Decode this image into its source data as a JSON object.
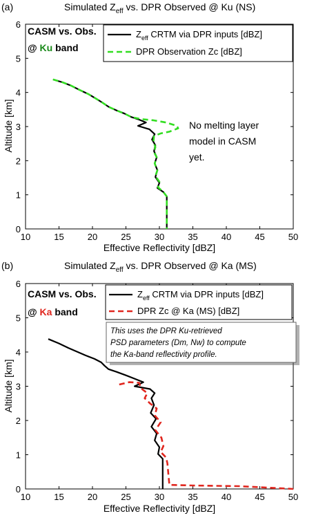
{
  "figure": {
    "panels": [
      {
        "label": "(a)",
        "title_pre": "Simulated Z",
        "title_sub": "eff",
        "title_post": " vs. DPR Observed @ Ku (NS)",
        "box_title": "CASM vs. Obs.",
        "box_band_pre": "@ ",
        "box_band": "Ku",
        "box_band_post": " band",
        "band_color": "#1a8a1a",
        "legend": [
          {
            "pre": "Z",
            "sub": "eff",
            "post": " CRTM via DPR inputs [dBZ]"
          },
          {
            "pre": "DPR Observation Zc [dBZ]",
            "sub": "",
            "post": ""
          }
        ],
        "annotation": [
          "No melting layer",
          "model in  CASM",
          "yet."
        ],
        "callout": [],
        "xlabel": "Effective Reflectivity [dBZ]",
        "ylabel": "Altitude [km]"
      },
      {
        "label": "(b)",
        "title_pre": "Simulated Z",
        "title_sub": "eff",
        "title_post": " vs. DPR Observed @ Ka (MS)",
        "box_title": "CASM vs. Obs.",
        "box_band_pre": "@ ",
        "box_band": "Ka",
        "box_band_post": " band",
        "band_color": "#e0261e",
        "legend": [
          {
            "pre": "Z",
            "sub": "eff",
            "post": " CRTM via DPR inputs [dBZ]"
          },
          {
            "pre": "DPR Zc @ Ka (MS) [dBZ]",
            "sub": "",
            "post": ""
          }
        ],
        "annotation": [],
        "callout": [
          "This uses the DPR Ku-retrieved",
          "PSD parameters (Dm, Nw) to compute",
          "the Ka-band reflectivity profile."
        ],
        "xlabel": "Effective Reflectivity [dBZ]",
        "ylabel": "Altitude [km]"
      }
    ]
  },
  "chart_data": [
    {
      "type": "line",
      "title": "(a) Simulated Zeff vs. DPR Observed @ Ku (NS)",
      "xlabel": "Effective Reflectivity [dBZ]",
      "ylabel": "Altitude [km]",
      "xlim": [
        10,
        50
      ],
      "ylim": [
        0,
        6
      ],
      "xticks": [
        10,
        15,
        20,
        25,
        30,
        35,
        40,
        45,
        50
      ],
      "yticks": [
        0,
        1,
        2,
        3,
        4,
        5,
        6
      ],
      "legend_position": "top-right",
      "series": [
        {
          "name": "Zeff CRTM via DPR inputs [dBZ]",
          "color": "#000000",
          "style": "solid",
          "points": [
            [
              14.1,
              4.38
            ],
            [
              15.5,
              4.3
            ],
            [
              16.8,
              4.2
            ],
            [
              18,
              4.08
            ],
            [
              19.4,
              3.95
            ],
            [
              20.5,
              3.82
            ],
            [
              21.5,
              3.7
            ],
            [
              22.4,
              3.58
            ],
            [
              23.5,
              3.48
            ],
            [
              24.8,
              3.38
            ],
            [
              25.8,
              3.28
            ],
            [
              27,
              3.2
            ],
            [
              28,
              3.12
            ],
            [
              26.8,
              3.02
            ],
            [
              28.5,
              2.92
            ],
            [
              29.3,
              2.78
            ],
            [
              28.9,
              2.62
            ],
            [
              29.4,
              2.45
            ],
            [
              29.2,
              2.28
            ],
            [
              29.6,
              2.1
            ],
            [
              29.3,
              1.92
            ],
            [
              29.7,
              1.72
            ],
            [
              29.4,
              1.52
            ],
            [
              30,
              1.35
            ],
            [
              29.7,
              1.2
            ],
            [
              30.6,
              1.08
            ],
            [
              31.1,
              0.95
            ],
            [
              31.1,
              0
            ]
          ]
        },
        {
          "name": "DPR Observation Zc [dBZ]",
          "color": "#33dd22",
          "style": "dashed",
          "points": [
            [
              14.1,
              4.38
            ],
            [
              15.5,
              4.3
            ],
            [
              16.8,
              4.2
            ],
            [
              18,
              4.08
            ],
            [
              19.4,
              3.95
            ],
            [
              20.5,
              3.82
            ],
            [
              21.5,
              3.7
            ],
            [
              22.4,
              3.58
            ],
            [
              23.5,
              3.48
            ],
            [
              24.8,
              3.38
            ],
            [
              25.8,
              3.28
            ],
            [
              27.2,
              3.22
            ],
            [
              29.2,
              3.18
            ],
            [
              31,
              3.12
            ],
            [
              32.6,
              3.02
            ],
            [
              32.8,
              2.95
            ],
            [
              31.5,
              2.85
            ],
            [
              30.2,
              2.8
            ],
            [
              29.2,
              2.72
            ],
            [
              29.1,
              2.55
            ],
            [
              29.4,
              2.4
            ],
            [
              29.2,
              2.25
            ],
            [
              29.6,
              2.1
            ],
            [
              29.3,
              1.92
            ],
            [
              29.7,
              1.72
            ],
            [
              29.4,
              1.55
            ],
            [
              30,
              1.38
            ],
            [
              29.8,
              1.22
            ],
            [
              30.6,
              1.08
            ],
            [
              31.1,
              0.95
            ],
            [
              31.1,
              0
            ]
          ]
        }
      ]
    },
    {
      "type": "line",
      "title": "(b) Simulated Zeff vs. DPR Observed @ Ka (MS)",
      "xlabel": "Effective Reflectivity [dBZ]",
      "ylabel": "Altitude [km]",
      "xlim": [
        10,
        50
      ],
      "ylim": [
        0,
        6
      ],
      "xticks": [
        10,
        15,
        20,
        25,
        30,
        35,
        40,
        45,
        50
      ],
      "yticks": [
        0,
        1,
        2,
        3,
        4,
        5,
        6
      ],
      "legend_position": "top-right",
      "series": [
        {
          "name": "Zeff CRTM via DPR inputs [dBZ]",
          "color": "#000000",
          "style": "solid",
          "points": [
            [
              13.4,
              4.38
            ],
            [
              15,
              4.25
            ],
            [
              16.4,
              4.12
            ],
            [
              17.8,
              4
            ],
            [
              19,
              3.9
            ],
            [
              20.3,
              3.8
            ],
            [
              21.3,
              3.7
            ],
            [
              21.8,
              3.6
            ],
            [
              22.4,
              3.5
            ],
            [
              23.6,
              3.42
            ],
            [
              25,
              3.32
            ],
            [
              26.3,
              3.22
            ],
            [
              27.6,
              3.12
            ],
            [
              26.3,
              3
            ],
            [
              28.6,
              2.92
            ],
            [
              29.3,
              2.8
            ],
            [
              28.8,
              2.65
            ],
            [
              29.2,
              2.45
            ],
            [
              28.7,
              2.22
            ],
            [
              29.5,
              2.05
            ],
            [
              28.8,
              1.82
            ],
            [
              29.6,
              1.62
            ],
            [
              29.3,
              1.42
            ],
            [
              30,
              1.22
            ],
            [
              29.8,
              1.02
            ],
            [
              30.5,
              0.88
            ],
            [
              30.5,
              0
            ]
          ]
        },
        {
          "name": "DPR Zc @ Ka (MS) [dBZ]",
          "color": "#e0261e",
          "style": "dashed",
          "points": [
            [
              24,
              3.05
            ],
            [
              25.5,
              3.12
            ],
            [
              27,
              3.1
            ],
            [
              27.2,
              2.95
            ],
            [
              28.2,
              2.8
            ],
            [
              27.8,
              2.65
            ],
            [
              28.6,
              2.5
            ],
            [
              29.6,
              2.35
            ],
            [
              29.3,
              2.15
            ],
            [
              30.2,
              1.95
            ],
            [
              29.4,
              1.72
            ],
            [
              30.3,
              1.5
            ],
            [
              30.6,
              1.25
            ],
            [
              30.2,
              1.08
            ],
            [
              31,
              0.92
            ],
            [
              31.2,
              0.75
            ],
            [
              31.4,
              0.3
            ],
            [
              31.5,
              0.12
            ],
            [
              35,
              0.1
            ],
            [
              42,
              0.08
            ],
            [
              50,
              0
            ]
          ]
        }
      ]
    }
  ]
}
